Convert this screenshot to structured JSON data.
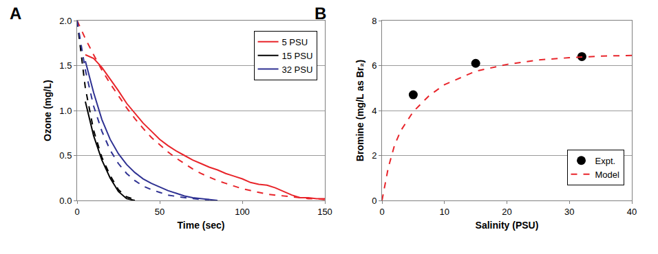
{
  "chart_data": [
    {
      "type": "line",
      "title": "A",
      "x_label": "Time (sec)",
      "y_label": "Ozone (mg/L)",
      "x": [
        0,
        5,
        10,
        15,
        20,
        25,
        30,
        35,
        40,
        45,
        50,
        55,
        60,
        65,
        70,
        75,
        80,
        85,
        90,
        95,
        100,
        105,
        110,
        115,
        120,
        125,
        130,
        135,
        140,
        145,
        150
      ],
      "series": [
        {
          "name": "5 PSU",
          "color": "#e8242a",
          "line_style": "solid",
          "values": [
            null,
            1.62,
            1.58,
            1.48,
            1.35,
            1.22,
            1.08,
            0.97,
            0.86,
            0.77,
            0.68,
            0.61,
            0.55,
            0.5,
            0.45,
            0.41,
            0.37,
            0.34,
            0.3,
            0.27,
            0.24,
            0.2,
            0.18,
            0.17,
            0.14,
            0.1,
            0.06,
            0.03,
            0.03,
            0.02,
            0.02
          ]
        },
        {
          "name": "15 PSU",
          "color": "#000000",
          "line_style": "solid",
          "values": [
            null,
            1.1,
            0.72,
            0.45,
            0.25,
            0.1,
            0.02,
            0.0,
            null,
            null,
            null,
            null,
            null,
            null,
            null,
            null,
            null,
            null,
            null,
            null,
            null,
            null,
            null,
            null,
            null,
            null,
            null,
            null,
            null,
            null,
            null
          ]
        },
        {
          "name": "32 PSU",
          "color": "#2e3192",
          "line_style": "solid",
          "values": [
            null,
            1.55,
            1.2,
            0.9,
            0.68,
            0.52,
            0.4,
            0.31,
            0.24,
            0.19,
            0.15,
            0.11,
            0.08,
            0.05,
            0.03,
            0.02,
            0.01,
            0.0,
            null,
            null,
            null,
            null,
            null,
            null,
            null,
            null,
            null,
            null,
            null,
            null,
            null
          ]
        },
        {
          "name": "5 PSU",
          "color": "#e8242a",
          "line_style": "dashed",
          "values": [
            2.0,
            1.8,
            1.62,
            1.45,
            1.3,
            1.16,
            1.03,
            0.91,
            0.8,
            0.7,
            0.62,
            0.54,
            0.47,
            0.41,
            0.35,
            0.3,
            0.26,
            0.22,
            0.19,
            0.16,
            0.13,
            0.11,
            0.09,
            0.07,
            0.06,
            0.05,
            0.04,
            0.03,
            0.02,
            0.02,
            0.01
          ]
        },
        {
          "name": "15 PSU",
          "color": "#000000",
          "line_style": "dashed",
          "values": [
            2.0,
            1.25,
            0.78,
            0.48,
            0.28,
            0.12,
            0.04,
            0.01,
            null,
            null,
            null,
            null,
            null,
            null,
            null,
            null,
            null,
            null,
            null,
            null,
            null,
            null,
            null,
            null,
            null,
            null,
            null,
            null,
            null,
            null,
            null
          ]
        },
        {
          "name": "32 PSU",
          "color": "#2e3192",
          "line_style": "dashed",
          "values": [
            2.0,
            1.45,
            1.05,
            0.77,
            0.56,
            0.41,
            0.3,
            0.22,
            0.16,
            0.12,
            0.09,
            0.06,
            0.045,
            0.03,
            0.02,
            0.01,
            0.01,
            null,
            null,
            null,
            null,
            null,
            null,
            null,
            null,
            null,
            null,
            null,
            null,
            null,
            null
          ]
        }
      ],
      "xlim": [
        0,
        150
      ],
      "xticks": [
        0,
        50,
        100,
        150
      ],
      "ylim": [
        0,
        2
      ],
      "yticks": [
        {
          "value": 0,
          "label": "0.0"
        },
        0.5,
        {
          "value": 1,
          "label": "1.0"
        },
        1.5,
        {
          "value": 2,
          "label": "2.0"
        }
      ],
      "grid": true,
      "legend": "upper right"
    },
    {
      "type": "scatter",
      "title": "B",
      "x_label": "Salinity (PSU)",
      "y_label": "Bromine (mg/L as Br₂)",
      "x": [
        0,
        1,
        2,
        3,
        5,
        7.5,
        10,
        15,
        20,
        25,
        30,
        32,
        35,
        40
      ],
      "series": [
        {
          "name": "Expt.",
          "color": "#000000",
          "type": "scatter",
          "marker": "circle",
          "values": [
            null,
            null,
            null,
            null,
            4.7,
            null,
            null,
            6.1,
            null,
            null,
            null,
            6.4,
            null,
            null
          ]
        },
        {
          "name": "Model",
          "color": "#e8242a",
          "type": "line",
          "line_style": "dashed",
          "values": [
            0,
            1.45,
            2.45,
            3.1,
            3.95,
            4.65,
            5.15,
            5.75,
            6.05,
            6.25,
            6.35,
            6.38,
            6.42,
            6.45
          ]
        }
      ],
      "xlim": [
        0,
        40
      ],
      "xticks": [
        0,
        10,
        20,
        30,
        40
      ],
      "ylim": [
        0,
        8
      ],
      "yticks": [
        0,
        2,
        4,
        6,
        8
      ],
      "grid": true,
      "legend": "lower right"
    }
  ]
}
